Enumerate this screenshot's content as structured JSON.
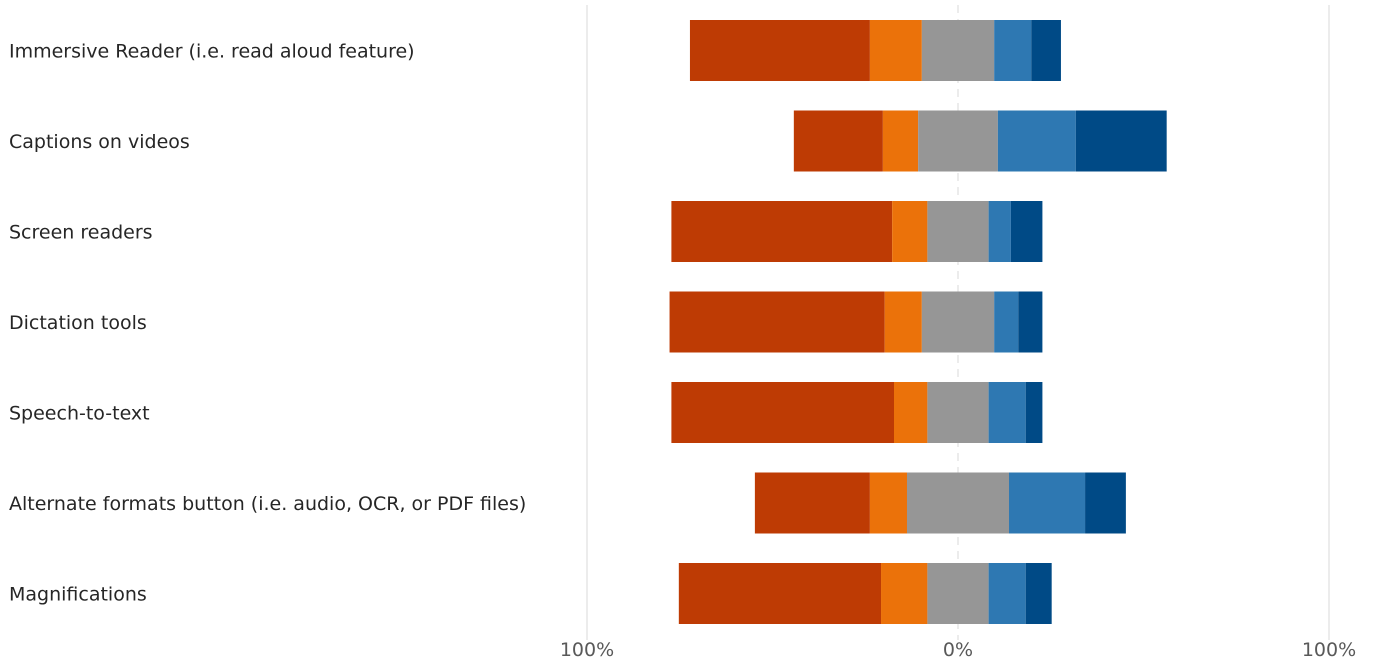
{
  "chart_data": {
    "type": "bar",
    "orientation": "horizontal",
    "stacked": "diverging",
    "categories": [
      "Immersive Reader (i.e. read aloud feature)",
      "Captions on videos",
      "Screen readers",
      "Dictation tools",
      "Speech-to-text",
      "Alternate formats button (i.e. audio, OCR, or PDF files)",
      "Magnifications"
    ],
    "series": [
      {
        "color": "#BE3B04",
        "side": "negative",
        "values": [
          48.5,
          24,
          59.5,
          58,
          60,
          31,
          54.5
        ]
      },
      {
        "color": "#EB720A",
        "side": "negative",
        "values": [
          14,
          9.5,
          9.5,
          10,
          9,
          10,
          12.5
        ]
      },
      {
        "color": "#969696",
        "side": "neutral",
        "values": [
          19.5,
          21.5,
          16.5,
          19.5,
          16.5,
          27.5,
          16.5
        ]
      },
      {
        "color": "#2E78B2",
        "side": "positive",
        "values": [
          10,
          21,
          6,
          6.5,
          10,
          20.5,
          10
        ]
      },
      {
        "color": "#004A86",
        "side": "positive",
        "values": [
          8,
          24.5,
          8.5,
          6.5,
          4.5,
          11,
          7
        ]
      }
    ],
    "xlim": [
      -100,
      100
    ],
    "x_tick_labels": [
      "100%",
      "0%",
      "100%"
    ],
    "grid": true,
    "legend": "none"
  }
}
